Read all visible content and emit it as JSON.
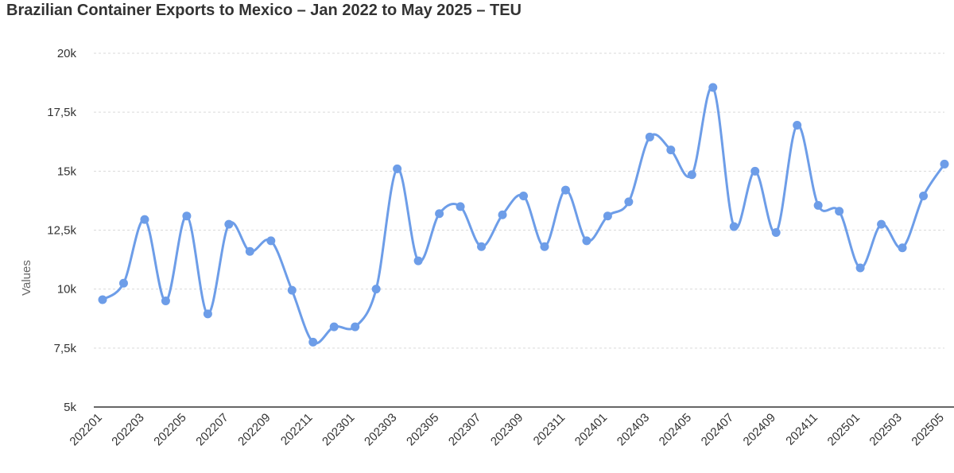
{
  "chart_data": {
    "type": "line",
    "title": "Brazilian Container Exports to Mexico – Jan 2022 to May 2025 – TEU",
    "xlabel": "",
    "ylabel": "Values",
    "ylim": [
      5000,
      20000
    ],
    "yticks": [
      5000,
      7500,
      10000,
      12500,
      15000,
      17500,
      20000
    ],
    "ytick_labels": [
      "5k",
      "7,5k",
      "10k",
      "12,5k",
      "15k",
      "17,5k",
      "20k"
    ],
    "grid": true,
    "legend": "none",
    "line_color": "#6d9de8",
    "x": [
      "202201",
      "202202",
      "202203",
      "202204",
      "202205",
      "202206",
      "202207",
      "202208",
      "202209",
      "202210",
      "202211",
      "202212",
      "202301",
      "202302",
      "202303",
      "202304",
      "202305",
      "202306",
      "202307",
      "202308",
      "202309",
      "202310",
      "202311",
      "202312",
      "202401",
      "202402",
      "202403",
      "202404",
      "202405",
      "202406",
      "202407",
      "202408",
      "202409",
      "202410",
      "202411",
      "202412",
      "202501",
      "202502",
      "202503",
      "202504",
      "202505"
    ],
    "xtick_labels": [
      "202201",
      "202203",
      "202205",
      "202207",
      "202209",
      "202211",
      "202301",
      "202303",
      "202305",
      "202307",
      "202309",
      "202311",
      "202401",
      "202403",
      "202405",
      "202407",
      "202409",
      "202411",
      "202501",
      "202503",
      "202505"
    ],
    "series": [
      {
        "values": [
          9550,
          10250,
          12950,
          9500,
          13100,
          8950,
          12750,
          11600,
          12050,
          9950,
          7750,
          8400,
          8400,
          10000,
          15100,
          11200,
          13200,
          13500,
          11800,
          13150,
          13950,
          11800,
          14200,
          12050,
          13100,
          13700,
          16450,
          15900,
          14850,
          18550,
          12650,
          15000,
          12400,
          16950,
          13550,
          13300,
          10900,
          12750,
          11750,
          13950,
          15300
        ]
      }
    ]
  }
}
